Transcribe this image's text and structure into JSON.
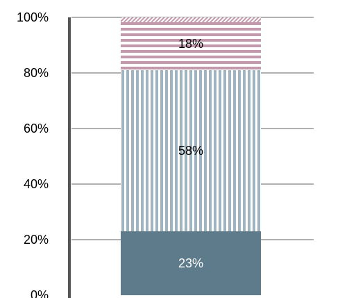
{
  "chart_data": {
    "type": "bar",
    "stacked": "percent",
    "categories": [
      ""
    ],
    "series": [
      {
        "values": [
          23
        ],
        "label": "23%",
        "color": "#5e7b8c",
        "pattern": "solid"
      },
      {
        "values": [
          58
        ],
        "label": "58%",
        "color": "#9fb3c1",
        "pattern": "vertical-stripes"
      },
      {
        "values": [
          18
        ],
        "label": "18%",
        "color": "#c39aac",
        "pattern": "horizontal-stripes"
      }
    ],
    "top_segment": {
      "color": "#c39aac",
      "pattern": "diagonal-hatch"
    },
    "y_ticks": [
      "0%",
      "20%",
      "40%",
      "60%",
      "80%",
      "100%"
    ],
    "ylim": [
      0,
      100
    ],
    "grid": true,
    "gridline_color": "#808080",
    "axis_color": "#555555",
    "title": "",
    "xlabel": "",
    "ylabel": ""
  }
}
